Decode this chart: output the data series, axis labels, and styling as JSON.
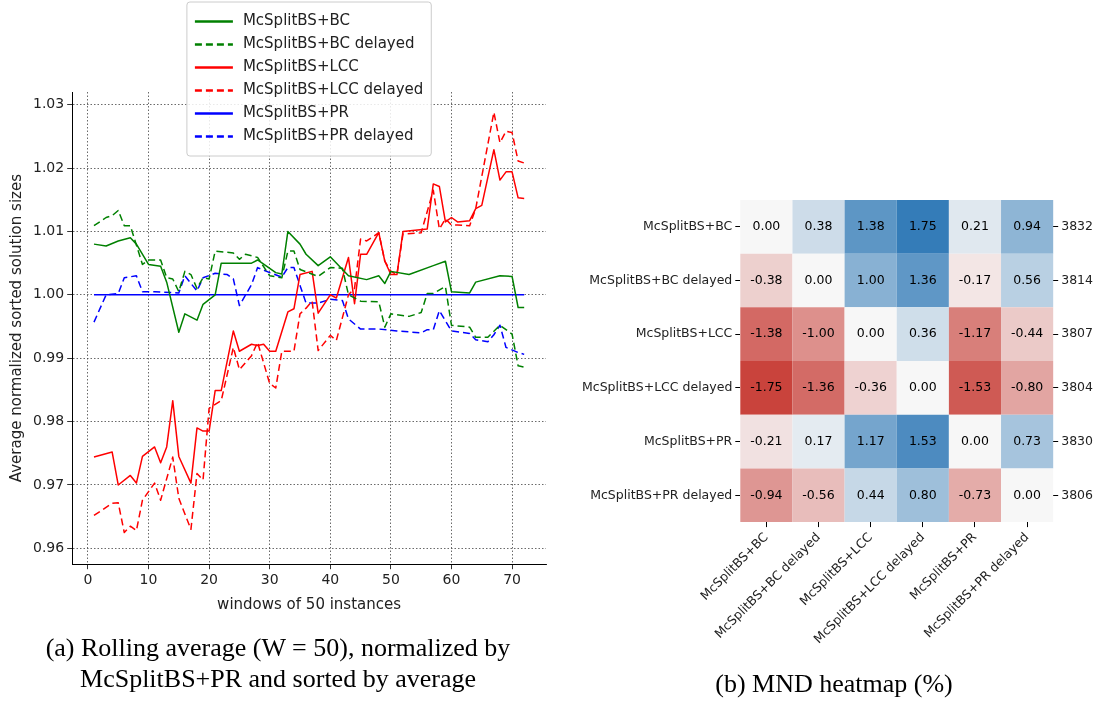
{
  "chart_data": [
    {
      "type": "line",
      "title": "(a) Rolling average (W = 50), normalized by McSplitBS+PR and sorted by average",
      "xlabel": "windows of 50 instances",
      "ylabel": "Average normalized sorted solution sizes",
      "xlim": [
        -2.6,
        75.6
      ],
      "xticks": [
        0,
        10,
        20,
        30,
        40,
        50,
        60,
        70
      ],
      "ylim": [
        0.9575,
        1.032
      ],
      "yticks": [
        0.96,
        0.97,
        0.98,
        0.99,
        {
          "value": 1,
          "label": "1.00"
        },
        1.01,
        1.02,
        1.03
      ],
      "grid": true,
      "legend": "top",
      "series": [
        {
          "name": "McSplitBS+BC",
          "color": "#008000",
          "line_style": "solid",
          "x": [
            1,
            3,
            5,
            7,
            8,
            10,
            12,
            13,
            15,
            16,
            18,
            19,
            21,
            22,
            27,
            28,
            31,
            32,
            33,
            35,
            36,
            38,
            40,
            43,
            46,
            48,
            49,
            50,
            53,
            57,
            59,
            60,
            63,
            64,
            68,
            70,
            71,
            72
          ],
          "values": [
            1.008,
            1.0077,
            1.0085,
            1.009,
            1.008,
            1.0048,
            1.0045,
            1.002,
            0.9941,
            0.997,
            0.996,
            0.9985,
            1.0,
            1.005,
            1.005,
            1.0055,
            1.0035,
            1.0033,
            1.01,
            1.008,
            1.0064,
            1.0046,
            1.006,
            1.003,
            1.0024,
            1.003,
            1.0018,
            1.0037,
            1.0032,
            1.0046,
            1.0053,
            1.0005,
            1.0003,
            1.002,
            1.003,
            1.0029,
            0.998,
            0.998
          ]
        },
        {
          "name": "McSplitBS+BC delayed",
          "color": "#008000",
          "line_style": "dashed",
          "x": [
            1,
            3,
            4,
            5,
            6,
            7,
            9,
            10,
            12,
            13,
            14,
            15,
            16,
            17,
            18,
            19,
            20,
            21,
            24,
            25,
            26,
            28,
            30,
            32,
            33,
            34,
            35,
            38,
            40,
            42,
            43,
            45,
            48,
            49,
            50,
            53,
            55,
            56,
            57,
            59,
            60,
            63,
            64,
            66,
            68,
            70,
            71,
            72
          ],
          "values": [
            1.0109,
            1.0122,
            1.0125,
            1.0133,
            1.0109,
            1.0109,
            1.0048,
            1.0055,
            1.0055,
            1.0027,
            1.0025,
            1.0005,
            1.0037,
            1.0032,
            1.001,
            1.0027,
            1.0025,
            1.0069,
            1.0066,
            1.0056,
            1.0064,
            1.0059,
            1.003,
            1.0027,
            1.0069,
            1.0069,
            1.004,
            1.0029,
            1.0043,
            1.0042,
            1.0,
            0.999,
            0.9989,
            0.9949,
            0.997,
            0.9966,
            0.9972,
            1.0002,
            1.0002,
            1.0013,
            0.9952,
            0.9949,
            0.9933,
            0.9933,
            0.9952,
            0.9938,
            0.9888,
            0.9886
          ]
        },
        {
          "name": "McSplitBS+LCC",
          "color": "#ff0000",
          "line_style": "solid",
          "x": [
            1,
            4,
            5,
            7,
            8,
            9,
            11,
            12,
            13,
            14,
            15,
            17,
            18,
            19,
            20,
            21,
            22,
            24,
            25,
            27,
            28,
            29,
            30,
            31,
            33,
            34,
            35,
            37,
            38,
            40,
            41,
            43,
            44,
            45,
            46,
            48,
            49,
            50,
            51,
            52,
            56,
            57,
            58,
            59,
            60,
            61,
            63,
            64,
            65,
            67,
            68,
            69,
            70,
            71,
            72
          ],
          "values": [
            0.9744,
            0.9752,
            0.97,
            0.9715,
            0.9703,
            0.9745,
            0.976,
            0.9735,
            0.976,
            0.9833,
            0.9745,
            0.9703,
            0.979,
            0.9785,
            0.9785,
            0.9849,
            0.9849,
            0.9943,
            0.9911,
            0.9922,
            0.992,
            0.9922,
            0.9911,
            0.9911,
            0.9973,
            0.9978,
            1.0032,
            1.0037,
            0.9971,
            1.0,
            0.9995,
            1.0059,
            0.9986,
            1.0064,
            1.0064,
            1.0098,
            1.0053,
            1.0032,
            1.0032,
            1.01,
            1.0104,
            1.0175,
            1.0171,
            1.0115,
            1.0122,
            1.0115,
            1.0117,
            1.0136,
            1.0141,
            1.0229,
            1.0181,
            1.0194,
            1.0194,
            1.0153,
            1.0152
          ]
        },
        {
          "name": "McSplitBS+LCC delayed",
          "color": "#ff0000",
          "line_style": "dashed",
          "x": [
            1,
            4,
            5,
            6,
            7,
            8,
            9,
            11,
            12,
            14,
            15,
            17,
            18,
            19,
            20,
            22,
            24,
            25,
            27,
            28,
            30,
            31,
            32,
            34,
            35,
            36,
            37,
            38,
            40,
            41,
            43,
            44,
            45,
            46,
            48,
            49,
            50,
            51,
            52,
            55,
            57,
            58,
            59,
            60,
            61,
            63,
            64,
            67,
            68,
            69,
            70,
            71,
            72
          ],
          "values": [
            0.9652,
            0.9671,
            0.9672,
            0.9625,
            0.9635,
            0.9628,
            0.9676,
            0.9703,
            0.9676,
            0.9744,
            0.9679,
            0.963,
            0.9718,
            0.9708,
            0.9821,
            0.9833,
            0.9917,
            0.9882,
            0.9904,
            0.9925,
            0.986,
            0.9853,
            0.9911,
            0.9911,
            0.997,
            0.9979,
            0.999,
            0.9912,
            0.9936,
            0.9928,
            1.0,
            1.001,
            1.0088,
            1.0085,
            1.0098,
            1.0053,
            1.0037,
            1.0032,
            1.0096,
            1.0098,
            1.0165,
            1.0104,
            1.012,
            1.011,
            1.011,
            1.0109,
            1.0136,
            1.0288,
            1.024,
            1.0258,
            1.0256,
            1.0211,
            1.0208
          ]
        },
        {
          "name": "McSplitBS+PR",
          "color": "#0000ff",
          "line_style": "solid",
          "x": [
            1,
            72
          ],
          "values": [
            1,
            1
          ]
        },
        {
          "name": "McSplitBS+PR delayed",
          "color": "#0000ff",
          "line_style": "dashed",
          "x": [
            1,
            3,
            5,
            6,
            8,
            9,
            11,
            15,
            16,
            18,
            19,
            21,
            23,
            24,
            25,
            27,
            28,
            30,
            32,
            33,
            34,
            36,
            38,
            40,
            42,
            43,
            45,
            48,
            51,
            55,
            56,
            57,
            58,
            60,
            63,
            64,
            66,
            67,
            68,
            69,
            71,
            72
          ],
          "values": [
            0.9957,
            1.0,
            1.0002,
            1.0027,
            1.003,
            1.0005,
            1.0005,
            1.0003,
            1.003,
            1.0006,
            1.0027,
            1.0034,
            1.0032,
            1.0025,
            0.9983,
            1.0016,
            1.0043,
            1.0035,
            1.0028,
            1.0043,
            1.0043,
            0.9987,
            0.9987,
            0.9993,
            0.9991,
            0.9962,
            0.9946,
            0.9946,
            0.9943,
            0.994,
            0.9945,
            0.9945,
            0.9975,
            0.9943,
            0.9939,
            0.9929,
            0.9926,
            0.9937,
            0.9952,
            0.9917,
            0.9909,
            0.9906
          ]
        }
      ]
    },
    {
      "type": "heatmap",
      "title": "(b) MND heatmap (%)",
      "categories": [
        "McSplitBS+BC",
        "McSplitBS+BC delayed",
        "McSplitBS+LCC",
        "McSplitBS+LCC delayed",
        "McSplitBS+PR",
        "McSplitBS+PR delayed"
      ],
      "y_categories": [
        "McSplitBS+BC",
        "McSplitBS+BC delayed",
        "McSplitBS+LCC",
        "McSplitBS+LCC delayed",
        "McSplitBS+PR",
        "McSplitBS+PR delayed"
      ],
      "y2_categories": [
        "3832",
        "3814",
        "3807",
        "3804",
        "3830",
        "3806"
      ],
      "cells": [
        [
          0,
          0.38,
          1.38,
          1.75,
          0.21,
          0.94
        ],
        [
          -0.38,
          0,
          1.0,
          1.36,
          -0.17,
          0.56
        ],
        [
          -1.38,
          -1.0,
          0,
          0.36,
          -1.17,
          -0.44
        ],
        [
          -1.75,
          -1.36,
          -0.36,
          0,
          -1.53,
          -0.8
        ],
        [
          -0.21,
          0.17,
          1.17,
          1.53,
          0,
          0.73
        ],
        [
          -0.94,
          -0.56,
          0.44,
          0.8,
          -0.73,
          0
        ]
      ],
      "cell_labels": [
        [
          "0.00",
          "0.38",
          "1.38",
          "1.75",
          "0.21",
          "0.94"
        ],
        [
          "-0.38",
          "0.00",
          "1.00",
          "1.36",
          "-0.17",
          "0.56"
        ],
        [
          "-1.38",
          "-1.00",
          "0.00",
          "0.36",
          "-1.17",
          "-0.44"
        ],
        [
          "-1.75",
          "-1.36",
          "-0.36",
          "0.00",
          "-1.53",
          "-0.80"
        ],
        [
          "-0.21",
          "0.17",
          "1.17",
          "1.53",
          "0.00",
          "0.73"
        ],
        [
          "-0.94",
          "-0.56",
          "0.44",
          "0.80",
          "-0.73",
          "0.00"
        ]
      ]
    }
  ]
}
